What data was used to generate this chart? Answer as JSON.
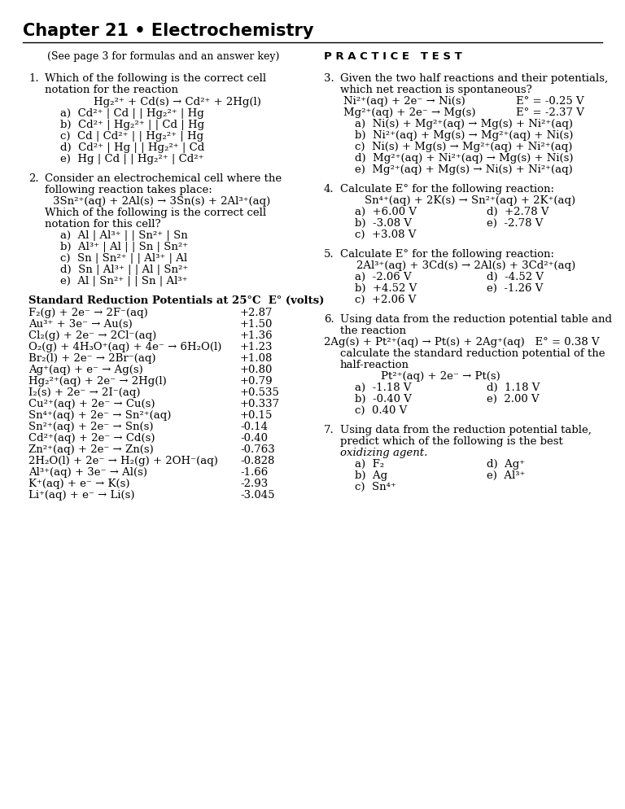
{
  "title": "Chapter 21 • Electrochemistry",
  "subtitle_left": "(See page 3 for formulas and an answer key)",
  "subtitle_right": "P R A C T I C E   T E S T",
  "bg_color": "#ffffff",
  "text_color": "#000000",
  "table_header": "Standard Reduction Potentials at 25°C  E° (volts)",
  "table_rows": [
    [
      "F₂(g) + 2e⁻ → 2F⁻(aq)",
      "+2.87"
    ],
    [
      "Au³⁺ + 3e⁻ → Au(s)",
      "+1.50"
    ],
    [
      "Cl₂(g) + 2e⁻ → 2Cl⁻(aq)",
      "+1.36"
    ],
    [
      "O₂(g) + 4H₃O⁺(aq) + 4e⁻ → 6H₂O(l)",
      "+1.23"
    ],
    [
      "Br₂(l) + 2e⁻ → 2Br⁻(aq)",
      "+1.08"
    ],
    [
      "Ag⁺(aq) + e⁻ → Ag(s)",
      "+0.80"
    ],
    [
      "Hg₂²⁺(aq) + 2e⁻ → 2Hg(l)",
      "+0.79"
    ],
    [
      "I₂(s) + 2e⁻ → 2I⁻(aq)",
      "+0.535"
    ],
    [
      "Cu²⁺(aq) + 2e⁻ → Cu(s)",
      "+0.337"
    ],
    [
      "Sn⁴⁺(aq) + 2e⁻ → Sn²⁺(aq)",
      "+0.15"
    ],
    [
      "Sn²⁺(aq) + 2e⁻ → Sn(s)",
      "-0.14"
    ],
    [
      "Cd²⁺(aq) + 2e⁻ → Cd(s)",
      "-0.40"
    ],
    [
      "Zn²⁺(aq) + 2e⁻ → Zn(s)",
      "-0.763"
    ],
    [
      "2H₂O(l) + 2e⁻ → H₂(g) + 2OH⁻(aq)",
      "-0.828"
    ],
    [
      "Al³⁺(aq) + 3e⁻ → Al(s)",
      "-1.66"
    ],
    [
      "K⁺(aq) + e⁻ → K(s)",
      "-2.93"
    ],
    [
      "Li⁺(aq) + e⁻ → Li(s)",
      "-3.045"
    ]
  ]
}
